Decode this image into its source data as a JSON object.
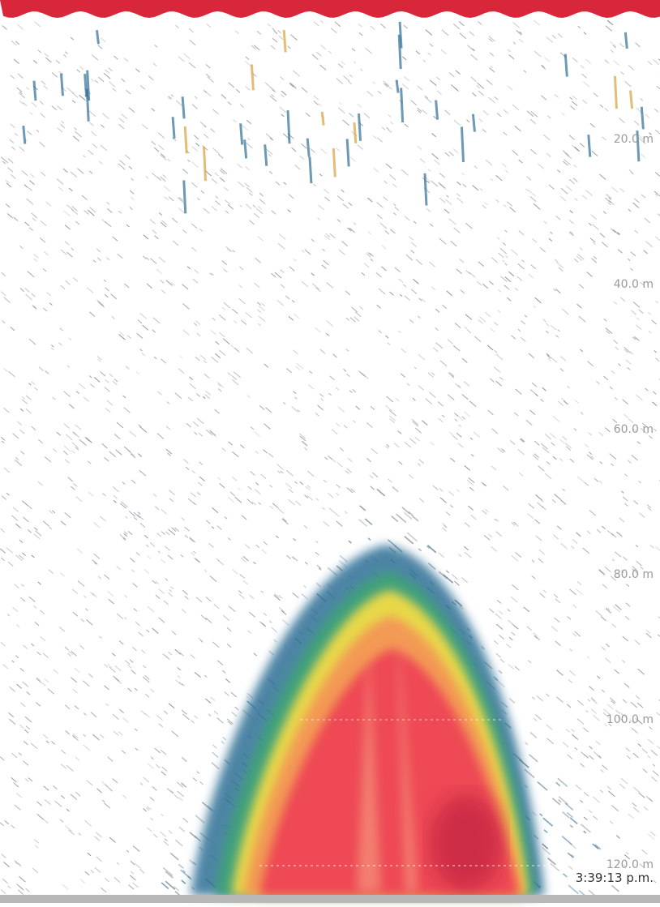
{
  "depth_labels": [
    "20.0 m",
    "40.0 m",
    "60.0 m",
    "80.0 m",
    "100.0 m",
    "120.0 m"
  ],
  "timestamp": "3:39:13 p.m."
}
